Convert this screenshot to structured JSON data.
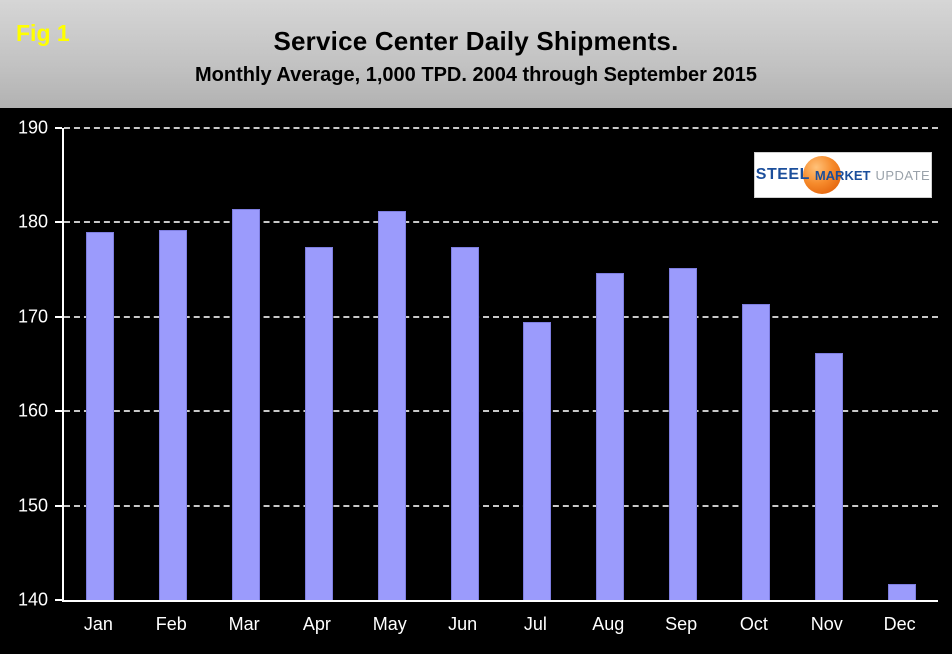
{
  "fig_label": "Fig 1",
  "title": "Service Center Daily Shipments.",
  "subtitle": "Monthly Average, 1,000 TPD.  2004 through September 2015",
  "logo": {
    "steel": "STEEL",
    "market": "MARKET",
    "update": "UPDATE",
    "sphere_color": "#f68b2c"
  },
  "chart_data": {
    "type": "bar",
    "title": "Service Center Daily Shipments.",
    "subtitle": "Monthly Average, 1,000 TPD.  2004 through September 2015",
    "categories": [
      "Jan",
      "Feb",
      "Mar",
      "Apr",
      "May",
      "Jun",
      "Jul",
      "Aug",
      "Sep",
      "Oct",
      "Nov",
      "Dec"
    ],
    "values": [
      179.0,
      179.2,
      181.4,
      177.4,
      181.2,
      177.4,
      169.4,
      174.6,
      175.2,
      171.4,
      166.2,
      141.7
    ],
    "ylim": [
      140,
      190
    ],
    "yticks": [
      140,
      150,
      160,
      170,
      180,
      190
    ],
    "xlabel": "",
    "ylabel": "",
    "bar_color": "#9b9bfc",
    "background_color": "#000000",
    "grid": "dashed-horizontal",
    "legend": "none"
  }
}
